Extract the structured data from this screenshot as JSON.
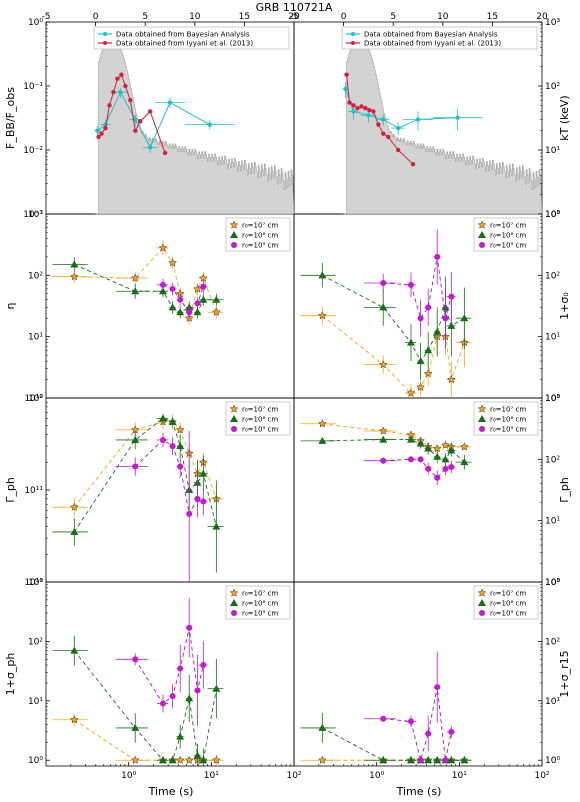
{
  "title": "GRB 110721A",
  "top_axis_ticks": [
    "-5",
    "0",
    "5",
    "10",
    "15",
    "20"
  ],
  "bottom_axis": {
    "label": "Time (s)",
    "ticks": [
      "10⁰",
      "10¹",
      "10²"
    ]
  },
  "colors": {
    "hist": "#d3d3d3",
    "hist_edge": "#8a8a8a",
    "cyan": "#22c1c3",
    "red": "#d0213f",
    "orange": "#f4a21c",
    "green": "#1a6b1a",
    "magenta": "#c01bd0",
    "magenta_line": "#9a1ab0"
  },
  "legends": {
    "top": [
      "Data obtained from Bayesian Analysis",
      "Data obtained from Iyyani et al. (2013)"
    ],
    "r0": [
      "r₀=10⁷ cm",
      "r₀=10⁸ cm",
      "r₀=10⁹ cm"
    ]
  },
  "chart_data": [
    {
      "type": "line",
      "panel": "top-left",
      "ylabel": "F_BB/F_obs",
      "yscale": "log",
      "ylim": [
        0.001,
        1
      ],
      "xlim": [
        -5,
        20
      ],
      "yticks": [
        "10⁻³",
        "10⁻²",
        "10⁻¹",
        "10⁰"
      ],
      "series": [
        {
          "name": "Data obtained from Bayesian Analysis",
          "x": [
            0.2,
            1.0,
            2.5,
            4.0,
            5.5,
            7.5,
            11.5
          ],
          "y": [
            0.02,
            0.025,
            0.08,
            0.03,
            0.011,
            0.055,
            0.025
          ],
          "xerr": [
            0.3,
            0.5,
            0.8,
            0.6,
            0.7,
            1.5,
            2.5
          ],
          "yerr": [
            0.004,
            0.005,
            0.015,
            0.006,
            0.002,
            0.01,
            0.004
          ]
        },
        {
          "name": "Data obtained from Iyyani et al. (2013)",
          "x": [
            0.3,
            0.6,
            1.0,
            1.4,
            1.8,
            2.2,
            2.6,
            3.0,
            3.5,
            4.0,
            4.5,
            5.5,
            7.0
          ],
          "y": [
            0.016,
            0.018,
            0.022,
            0.05,
            0.08,
            0.13,
            0.15,
            0.1,
            0.06,
            0.02,
            0.028,
            0.04,
            0.009
          ]
        }
      ]
    },
    {
      "type": "line",
      "panel": "top-right",
      "ylabel": "kT (keV)",
      "yscale": "log",
      "ylim": [
        1,
        1000
      ],
      "xlim": [
        -5,
        20
      ],
      "yticks": [
        "10⁰",
        "10¹",
        "10²",
        "10³"
      ],
      "series": [
        {
          "name": "Data obtained from Bayesian Analysis",
          "x": [
            0.2,
            1.0,
            2.5,
            4.0,
            5.5,
            7.5,
            11.5
          ],
          "y": [
            90,
            40,
            35,
            30,
            22,
            30,
            32
          ],
          "xerr": [
            0.3,
            0.5,
            0.8,
            0.6,
            0.7,
            1.5,
            2.5
          ],
          "yerr": [
            25,
            10,
            8,
            6,
            5,
            10,
            12
          ]
        },
        {
          "name": "Data obtained from Iyyani et al. (2013)",
          "x": [
            0.3,
            0.6,
            1.0,
            1.4,
            1.8,
            2.2,
            2.6,
            3.0,
            3.5,
            4.0,
            4.5,
            5.5,
            7.0
          ],
          "y": [
            150,
            55,
            50,
            45,
            48,
            45,
            42,
            40,
            25,
            18,
            16,
            10,
            6
          ]
        }
      ]
    },
    {
      "type": "scatter",
      "panel": "eta",
      "ylabel": "η",
      "yscale": "log",
      "ylim": [
        1,
        1000
      ],
      "xscale": "log",
      "xlim": [
        0.1,
        100
      ],
      "yticks": [
        "10⁰",
        "10¹",
        "10²",
        "10³"
      ],
      "series": [
        {
          "name": "r₀=10⁷ cm",
          "x": [
            0.22,
            1.2,
            2.6,
            3.4,
            4.2,
            5.4,
            6.8,
            8.0,
            11.5
          ],
          "y": [
            95,
            90,
            280,
            160,
            50,
            20,
            60,
            90,
            25
          ],
          "xerr": [
            0.1,
            0.5,
            0.4,
            0.3,
            0.4,
            0.5,
            0.6,
            1.0,
            2.5
          ],
          "yerr": [
            0.1,
            0.1,
            0.12,
            0.1,
            0.1,
            0.1,
            0.1,
            0.1,
            0.1
          ]
        },
        {
          "name": "r₀=10⁸ cm",
          "x": [
            0.22,
            1.2,
            2.6,
            3.4,
            4.2,
            5.4,
            6.8,
            8.0,
            11.5
          ],
          "y": [
            150,
            55,
            55,
            30,
            25,
            30,
            25,
            40,
            40
          ],
          "xerr": [
            0.1,
            0.5,
            0.4,
            0.3,
            0.4,
            0.5,
            0.6,
            1.0,
            2.5
          ],
          "yerr": [
            0.12,
            0.12,
            0.1,
            0.1,
            0.1,
            0.1,
            0.1,
            0.1,
            0.1
          ]
        },
        {
          "name": "r₀=10⁹ cm",
          "x": [
            2.6,
            3.4,
            4.2,
            5.4,
            6.8,
            8.0
          ],
          "y": [
            70,
            60,
            40,
            25,
            35,
            65
          ],
          "xerr": [
            0.4,
            0.3,
            0.4,
            0.5,
            0.6,
            1.0
          ],
          "yerr": [
            0.1,
            0.1,
            0.1,
            0.1,
            0.1,
            0.1
          ]
        }
      ]
    },
    {
      "type": "scatter",
      "panel": "sigma0",
      "ylabel": "1+σ₀",
      "yscale": "log",
      "ylim": [
        1,
        1000
      ],
      "xscale": "log",
      "xlim": [
        0.1,
        100
      ],
      "yticks": [
        "10⁰",
        "10¹",
        "10²",
        "10³"
      ],
      "series": [
        {
          "name": "r₀=10⁷ cm",
          "x": [
            0.22,
            1.2,
            2.6,
            3.4,
            4.2,
            5.4,
            6.8,
            8.0,
            11.5
          ],
          "y": [
            22,
            3.5,
            1.2,
            1.5,
            2.5,
            10,
            10,
            2,
            8
          ],
          "xerr": [
            0.1,
            0.5,
            0.4,
            0.3,
            0.4,
            0.5,
            0.6,
            1.0,
            2.5
          ],
          "yerr": [
            0.15,
            0.15,
            0.15,
            0.15,
            0.2,
            0.3,
            0.3,
            0.3,
            0.4
          ]
        },
        {
          "name": "r₀=10⁸ cm",
          "x": [
            0.22,
            1.2,
            2.6,
            3.4,
            4.2,
            5.4,
            6.8,
            8.0,
            11.5
          ],
          "y": [
            100,
            30,
            8,
            4,
            6,
            12,
            30,
            15,
            20
          ],
          "xerr": [
            0.1,
            0.5,
            0.4,
            0.3,
            0.4,
            0.5,
            0.6,
            1.0,
            2.5
          ],
          "yerr": [
            0.2,
            0.3,
            0.3,
            0.3,
            0.3,
            0.4,
            0.5,
            0.5,
            0.5
          ]
        },
        {
          "name": "r₀=10⁹ cm",
          "x": [
            1.2,
            2.6,
            3.4,
            4.2,
            5.4,
            6.8,
            8.0
          ],
          "y": [
            75,
            70,
            20,
            30,
            200,
            20,
            45
          ],
          "xerr": [
            0.5,
            0.4,
            0.3,
            0.4,
            0.5,
            0.6,
            1.0
          ],
          "yerr": [
            0.15,
            0.2,
            0.3,
            0.3,
            0.45,
            0.5,
            0.4
          ]
        }
      ]
    },
    {
      "type": "scatter",
      "panel": "gamma-left",
      "ylabel": "Γ_ph",
      "yscale": "log",
      "ylim": [
        10000000000.0,
        1000000000000.0
      ],
      "xscale": "log",
      "xlim": [
        0.1,
        100
      ],
      "yticks": [
        "10¹⁰",
        "10¹¹",
        "10¹²"
      ],
      "series": [
        {
          "name": "r₀=10⁷ cm",
          "x": [
            0.22,
            1.2,
            2.6,
            3.4,
            4.2,
            5.4,
            6.8,
            8.0,
            11.5
          ],
          "y": [
            65000000000.0,
            450000000000.0,
            550000000000.0,
            550000000000.0,
            450000000000.0,
            250000000000.0,
            150000000000.0,
            200000000000.0,
            80000000000.0
          ],
          "xerr": [
            0.1,
            0.5,
            0.4,
            0.3,
            0.4,
            0.5,
            0.6,
            1.0,
            2.5
          ],
          "yerr": [
            0.1,
            0.08,
            0.08,
            0.08,
            0.08,
            0.1,
            0.15,
            0.1,
            0.15
          ]
        },
        {
          "name": "r₀=10⁸ cm",
          "x": [
            0.22,
            1.2,
            2.6,
            3.4,
            4.2,
            5.4,
            6.8,
            8.0,
            11.5
          ],
          "y": [
            35000000000.0,
            350000000000.0,
            600000000000.0,
            550000000000.0,
            300000000000.0,
            100000000000.0,
            120000000000.0,
            150000000000.0,
            40000000000.0
          ],
          "xerr": [
            0.1,
            0.5,
            0.4,
            0.3,
            0.4,
            0.5,
            0.6,
            1.0,
            2.5
          ],
          "yerr": [
            0.15,
            0.1,
            0.05,
            0.05,
            0.12,
            0.3,
            0.25,
            0.2,
            0.5
          ]
        },
        {
          "name": "r₀=10⁹ cm",
          "x": [
            1.2,
            2.6,
            3.4,
            4.2,
            5.4,
            6.8,
            8.0
          ],
          "y": [
            180000000000.0,
            350000000000.0,
            300000000000.0,
            180000000000.0,
            55000000000.0,
            80000000000.0,
            75000000000.0
          ],
          "xerr": [
            0.5,
            0.4,
            0.3,
            0.4,
            0.5,
            0.6,
            1.0
          ],
          "yerr": [
            0.1,
            0.08,
            0.1,
            0.12,
            0.9,
            0.2,
            0.15
          ]
        }
      ]
    },
    {
      "type": "scatter",
      "panel": "gamma-right",
      "ylabel": "Γ_ph",
      "yscale": "log",
      "ylim": [
        1,
        1000
      ],
      "xscale": "log",
      "xlim": [
        0.1,
        100
      ],
      "yticks": [
        "10⁰",
        "10¹",
        "10²",
        "10³"
      ],
      "series": [
        {
          "name": "r₀=10⁷ cm",
          "x": [
            0.22,
            1.2,
            2.6,
            3.4,
            4.2,
            5.4,
            6.8,
            8.0,
            11.5
          ],
          "y": [
            380,
            290,
            250,
            200,
            160,
            150,
            170,
            160,
            160
          ],
          "xerr": [
            0.1,
            0.5,
            0.4,
            0.3,
            0.4,
            0.5,
            0.6,
            1.0,
            2.5
          ],
          "yerr": [
            0.05,
            0.05,
            0.05,
            0.05,
            0.05,
            0.05,
            0.05,
            0.05,
            0.05
          ]
        },
        {
          "name": "r₀=10⁸ cm",
          "x": [
            0.22,
            1.2,
            2.6,
            3.4,
            4.2,
            5.4,
            6.8,
            8.0,
            11.5
          ],
          "y": [
            200,
            210,
            210,
            180,
            150,
            110,
            100,
            140,
            90
          ],
          "xerr": [
            0.1,
            0.5,
            0.4,
            0.3,
            0.4,
            0.5,
            0.6,
            1.0,
            2.5
          ],
          "yerr": [
            0.05,
            0.05,
            0.05,
            0.08,
            0.1,
            0.1,
            0.1,
            0.1,
            0.12
          ]
        },
        {
          "name": "r₀=10⁹ cm",
          "x": [
            1.2,
            2.6,
            3.4,
            4.2,
            5.4,
            6.8,
            8.0
          ],
          "y": [
            95,
            100,
            100,
            70,
            50,
            70,
            75
          ],
          "xerr": [
            0.5,
            0.4,
            0.3,
            0.4,
            0.5,
            0.6,
            1.0
          ],
          "yerr": [
            0.05,
            0.05,
            0.05,
            0.1,
            0.12,
            0.1,
            0.1
          ]
        }
      ]
    },
    {
      "type": "scatter",
      "panel": "sigma-ph",
      "ylabel": "1+σ_ph",
      "yscale": "log",
      "ylim": [
        0.8,
        1000
      ],
      "xscale": "log",
      "xlim": [
        0.1,
        100
      ],
      "yticks": [
        "10⁰",
        "10¹",
        "10²",
        "10³"
      ],
      "series": [
        {
          "name": "r₀=10⁷ cm",
          "x": [
            0.22,
            1.2,
            2.6,
            3.4,
            4.2,
            5.4,
            6.8,
            8.0,
            11.5
          ],
          "y": [
            4.8,
            1.0,
            1.0,
            1.0,
            1.0,
            1.0,
            1.0,
            1.0,
            1.0
          ],
          "xerr": [
            0.1,
            0.5,
            0.4,
            0.3,
            0.4,
            0.5,
            0.6,
            1.0,
            2.5
          ],
          "yerr": [
            0.1,
            0.02,
            0.02,
            0.02,
            0.02,
            0.02,
            0.02,
            0.02,
            0.1
          ]
        },
        {
          "name": "r₀=10⁸ cm",
          "x": [
            0.22,
            1.2,
            2.6,
            3.4,
            4.2,
            5.4,
            6.8,
            8.0,
            11.5
          ],
          "y": [
            70,
            3.5,
            1.0,
            1.0,
            2.5,
            11,
            1.2,
            1.0,
            16
          ],
          "xerr": [
            0.1,
            0.5,
            0.4,
            0.3,
            0.4,
            0.5,
            0.6,
            1.0,
            2.5
          ],
          "yerr": [
            0.25,
            0.25,
            0.05,
            0.05,
            0.2,
            0.4,
            0.2,
            0.2,
            0.5
          ]
        },
        {
          "name": "r₀=10⁹ cm",
          "x": [
            1.2,
            2.6,
            3.4,
            4.2,
            5.4,
            6.8,
            8.0
          ],
          "y": [
            50,
            9,
            12,
            35,
            170,
            15,
            40
          ],
          "xerr": [
            0.5,
            0.4,
            0.3,
            0.4,
            0.5,
            0.6,
            1.0
          ],
          "yerr": [
            0.1,
            0.15,
            0.2,
            0.4,
            0.5,
            0.6,
            0.4
          ]
        }
      ]
    },
    {
      "type": "scatter",
      "panel": "sigma-r15",
      "ylabel": "1+σ_r15",
      "yscale": "log",
      "ylim": [
        0.8,
        1000
      ],
      "xscale": "log",
      "xlim": [
        0.1,
        100
      ],
      "yticks": [
        "10⁰",
        "10¹",
        "10²",
        "10³"
      ],
      "series": [
        {
          "name": "r₀=10⁷ cm",
          "x": [
            0.22,
            1.2,
            2.6,
            3.4,
            4.2,
            5.4,
            6.8,
            8.0,
            11.5
          ],
          "y": [
            1.0,
            1.0,
            1.0,
            1.0,
            1.0,
            1.0,
            1.0,
            1.0,
            1.0
          ],
          "xerr": [
            0.1,
            0.5,
            0.4,
            0.3,
            0.4,
            0.5,
            0.6,
            1.0,
            2.5
          ],
          "yerr": [
            0.02,
            0.02,
            0.02,
            0.02,
            0.02,
            0.02,
            0.02,
            0.02,
            0.02
          ]
        },
        {
          "name": "r₀=10⁸ cm",
          "x": [
            0.22,
            1.2,
            2.6,
            3.4,
            4.2,
            5.4,
            6.8,
            8.0,
            11.5
          ],
          "y": [
            3.5,
            1.0,
            1.0,
            1.0,
            1.0,
            1.0,
            1.0,
            1.0,
            1.0
          ],
          "xerr": [
            0.1,
            0.5,
            0.4,
            0.3,
            0.4,
            0.5,
            0.6,
            1.0,
            2.5
          ],
          "yerr": [
            0.25,
            0.03,
            0.03,
            0.03,
            0.03,
            0.05,
            0.03,
            0.03,
            0.03
          ]
        },
        {
          "name": "r₀=10⁹ cm",
          "x": [
            1.2,
            2.6,
            3.4,
            4.2,
            5.4,
            6.8,
            8.0
          ],
          "y": [
            5,
            4.5,
            1.0,
            2.8,
            17,
            1.0,
            3
          ],
          "xerr": [
            0.5,
            0.4,
            0.3,
            0.4,
            0.5,
            0.6,
            1.0
          ],
          "yerr": [
            0.05,
            0.1,
            0.05,
            0.3,
            0.6,
            0.05,
            0.1
          ]
        }
      ]
    }
  ]
}
